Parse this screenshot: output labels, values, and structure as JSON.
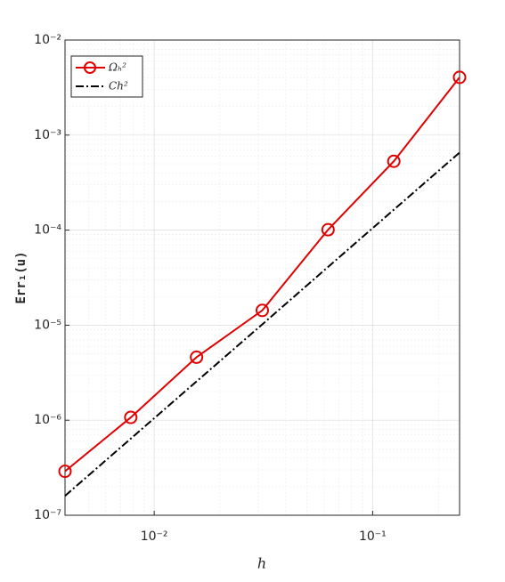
{
  "chart_data": {
    "type": "line",
    "log_x": true,
    "log_y": true,
    "grid": true,
    "minor_grid": true,
    "xlabel": "h",
    "ylabel": "Err₁(u)",
    "x": [
      0.00390625,
      0.0078125,
      0.015625,
      0.03125,
      0.0625,
      0.125,
      0.25
    ],
    "series": [
      {
        "name": "Ωₕ²",
        "color": "#e00000",
        "marker": "circle",
        "dash": "solid",
        "values": [
          2.9e-07,
          1.07e-06,
          4.6e-06,
          1.43e-05,
          0.000101,
          0.00053,
          0.00405
        ]
      },
      {
        "name": "Ch²",
        "color": "#000000",
        "marker": "none",
        "dash": "dashdot",
        "values": [
          1.6e-07,
          6.4e-07,
          2.56e-06,
          1.02e-05,
          4.1e-05,
          0.000164,
          0.000655
        ]
      }
    ],
    "xlim": [
      0.00390625,
      0.25
    ],
    "ylim": [
      1e-07,
      0.01
    ],
    "xticks": [
      {
        "value": 0.01,
        "label": "10⁻²"
      },
      {
        "value": 0.1,
        "label": "10⁻¹"
      }
    ],
    "yticks": [
      {
        "value": 1e-07,
        "label": "10⁻⁷"
      },
      {
        "value": 1e-06,
        "label": "10⁻⁶"
      },
      {
        "value": 1e-05,
        "label": "10⁻⁵"
      },
      {
        "value": 0.0001,
        "label": "10⁻⁴"
      },
      {
        "value": 0.001,
        "label": "10⁻³"
      },
      {
        "value": 0.01,
        "label": "10⁻²"
      }
    ],
    "legend": "top-left"
  }
}
